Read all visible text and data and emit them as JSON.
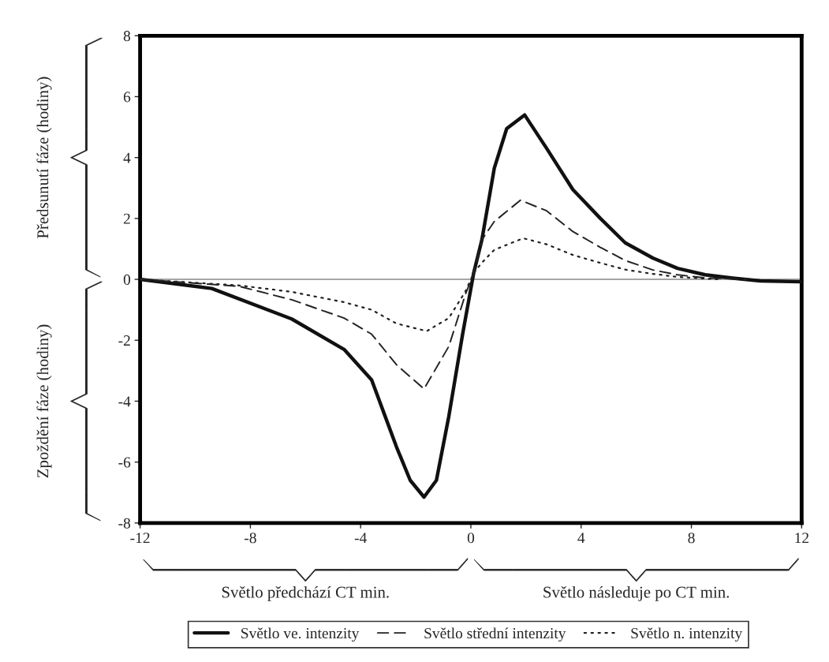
{
  "chart_data": {
    "type": "line",
    "xlim": [
      -12,
      12
    ],
    "xticks": [
      -12,
      -8,
      -4,
      0,
      4,
      8,
      12
    ],
    "ylim": [
      -8,
      8
    ],
    "yticks": [
      -8,
      -6,
      -4,
      -2,
      0,
      2,
      4,
      6,
      8
    ],
    "grid": false,
    "legend": "bottom",
    "marker": "none",
    "ref_lines": [
      {
        "axis": "y",
        "value": 0,
        "color": "#888888",
        "line_style": "solid"
      }
    ],
    "annotations": [
      "Předsunutí fáze (hodiny)",
      "Zpoždění fáze (hodiny)",
      "Světlo předchází CT min.",
      "Světlo následuje po CT min."
    ],
    "series": [
      {
        "name": "Světlo ve. intenzity",
        "color": "#111111",
        "line_style": "solid",
        "x": [
          -12,
          -9.4,
          -6.5,
          -4.6,
          -3.6,
          -3.15,
          -2.7,
          -2.2,
          -1.7,
          -1.25,
          -0.8,
          -0.3,
          0.1,
          0.4,
          0.85,
          1.3,
          1.95,
          2.75,
          3.7,
          4.7,
          5.6,
          6.6,
          7.5,
          8.5,
          9.5,
          10.5,
          12
        ],
        "values": [
          0,
          -0.3,
          -1.3,
          -2.3,
          -3.3,
          -4.4,
          -5.5,
          -6.6,
          -7.15,
          -6.6,
          -4.5,
          -1.8,
          0.2,
          1.3,
          3.65,
          4.95,
          5.4,
          4.3,
          2.95,
          2.0,
          1.2,
          0.7,
          0.36,
          0.15,
          0.04,
          -0.05,
          -0.08
        ]
      },
      {
        "name": "Světlo střední intenzity",
        "color": "#222222",
        "line_style": "dashed",
        "x": [
          -12,
          -8.4,
          -6.5,
          -4.6,
          -3.6,
          -2.7,
          -1.7,
          -0.8,
          -0.2,
          0.1,
          0.4,
          0.85,
          1.8,
          2.75,
          3.7,
          4.7,
          5.6,
          6.6,
          7.5,
          8.5,
          10
        ],
        "values": [
          0,
          -0.23,
          -0.67,
          -1.27,
          -1.8,
          -2.8,
          -3.6,
          -2.2,
          -0.5,
          0.2,
          1.3,
          1.9,
          2.6,
          2.25,
          1.57,
          1.05,
          0.62,
          0.31,
          0.15,
          0.05,
          0
        ]
      },
      {
        "name": "Světlo n. intenzity",
        "color": "#222222",
        "line_style": "dotted",
        "x": [
          -12,
          -8.4,
          -6.5,
          -4.6,
          -3.6,
          -2.7,
          -1.6,
          -0.8,
          -0.2,
          0.1,
          0.4,
          0.85,
          1.9,
          2.75,
          3.7,
          4.7,
          5.6,
          6.6,
          7.5,
          9
        ],
        "values": [
          0,
          -0.2,
          -0.41,
          -0.75,
          -1.0,
          -1.45,
          -1.7,
          -1.27,
          -0.4,
          0.2,
          0.55,
          0.97,
          1.35,
          1.15,
          0.8,
          0.54,
          0.32,
          0.18,
          0.08,
          0
        ]
      }
    ]
  }
}
